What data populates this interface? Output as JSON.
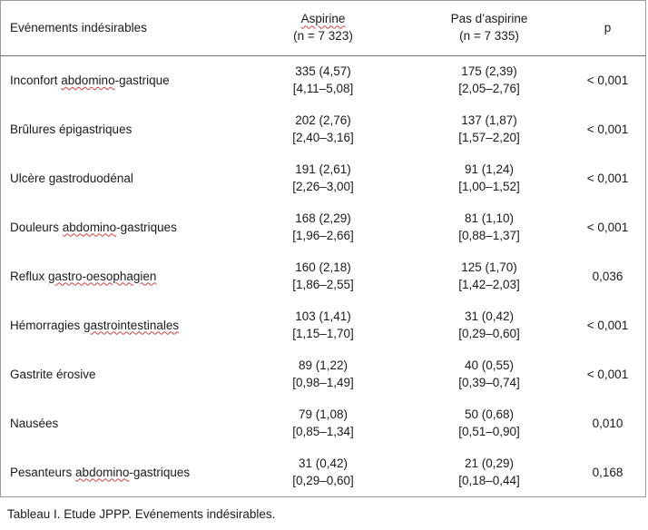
{
  "header": {
    "event": "Evénements indésirables",
    "aspirin_title": "Aspirine",
    "aspirin_n": "(n = 7 323)",
    "no_aspirin_title": "Pas d’aspirine",
    "no_aspirin_n": "(n = 7 335)",
    "p": "p"
  },
  "rows": [
    {
      "event_a": "Inconfort ",
      "event_b": "abdomino",
      "event_c": "-gastrique",
      "asp_val": "335 (4,57)",
      "asp_ci": "[4,11–5,08]",
      "pas_val": "175 (2,39)",
      "pas_ci": "[2,05–2,76]",
      "p": "< 0,001"
    },
    {
      "event_a": "Brûlures épigastriques",
      "event_b": "",
      "event_c": "",
      "asp_val": "202 (2,76)",
      "asp_ci": "[2,40–3,16]",
      "pas_val": "137 (1,87)",
      "pas_ci": "[1,57–2,20]",
      "p": "< 0,001"
    },
    {
      "event_a": "Ulcère gastroduodénal",
      "event_b": "",
      "event_c": "",
      "asp_val": "191 (2,61)",
      "asp_ci": "[2,26–3,00]",
      "pas_val": "91 (1,24)",
      "pas_ci": "[1,00–1,52]",
      "p": "< 0,001"
    },
    {
      "event_a": "Douleurs ",
      "event_b": "abdomino",
      "event_c": "-gastriques",
      "asp_val": "168 (2,29)",
      "asp_ci": "[1,96–2,66]",
      "pas_val": "81 (1,10)",
      "pas_ci": "[0,88–1,37]",
      "p": "< 0,001"
    },
    {
      "event_a": "Reflux ",
      "event_b": "gastro-oesophagien",
      "event_c": "",
      "asp_val": "160 (2,18)",
      "asp_ci": "[1,86–2,55]",
      "pas_val": "125 (1,70)",
      "pas_ci": "[1,42–2,03]",
      "p": "0,036"
    },
    {
      "event_a": "Hémorragies ",
      "event_b": "gastrointestinales",
      "event_c": "",
      "asp_val": "103 (1,41)",
      "asp_ci": "[1,15–1,70]",
      "pas_val": "31 (0,42)",
      "pas_ci": "[0,29–0,60]",
      "p": "< 0,001"
    },
    {
      "event_a": "Gastrite érosive",
      "event_b": "",
      "event_c": "",
      "asp_val": "89 (1,22)",
      "asp_ci": "[0,98–1,49]",
      "pas_val": "40 (0,55)",
      "pas_ci": "[0,39–0,74]",
      "p": "< 0,001"
    },
    {
      "event_a": "Nausées",
      "event_b": "",
      "event_c": "",
      "asp_val": "79 (1,08)",
      "asp_ci": "[0,85–1,34]",
      "pas_val": "50 (0,68)",
      "pas_ci": "[0,51–0,90]",
      "p": "0,010"
    },
    {
      "event_a": "Pesanteurs ",
      "event_b": "abdomino",
      "event_c": "-gastriques",
      "asp_val": "31 (0,42)",
      "asp_ci": "[0,29–0,60]",
      "pas_val": "21 (0,29)",
      "pas_ci": "[0,18–0,44]",
      "p": "0,168"
    }
  ],
  "caption": "Tableau I. Etude JPPP. Evénements indésirables."
}
